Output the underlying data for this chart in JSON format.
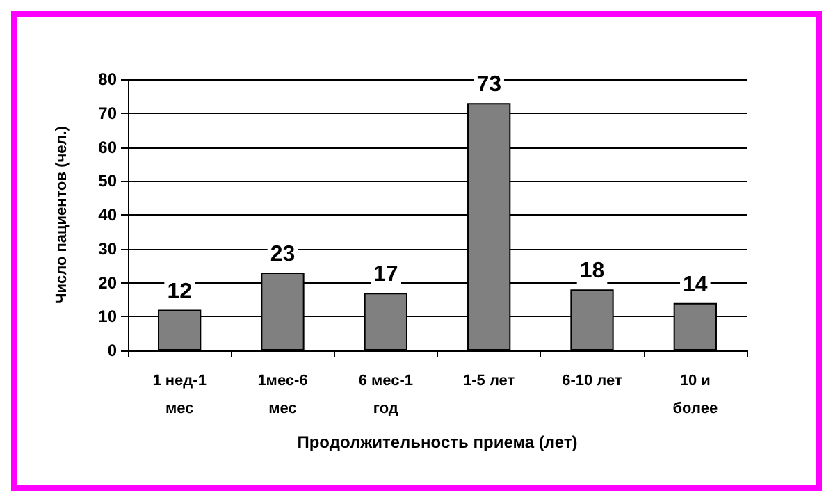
{
  "chart_data": {
    "type": "bar",
    "xlabel": "Продолжительность приема (лет)",
    "ylabel": "Число пациентов (чел.)",
    "categories": [
      "1 нед-1\nмес",
      "1мес-6\nмес",
      "6 мес-1\nгод",
      "1-5 лет",
      "6-10 лет",
      "10 и\nболее"
    ],
    "values": [
      12,
      23,
      17,
      73,
      18,
      14
    ],
    "color": "#808080",
    "ylim": [
      0,
      80
    ],
    "yticks": [
      0,
      10,
      20,
      30,
      40,
      50,
      60,
      70,
      80
    ],
    "grid": "y",
    "data_labels": true
  }
}
